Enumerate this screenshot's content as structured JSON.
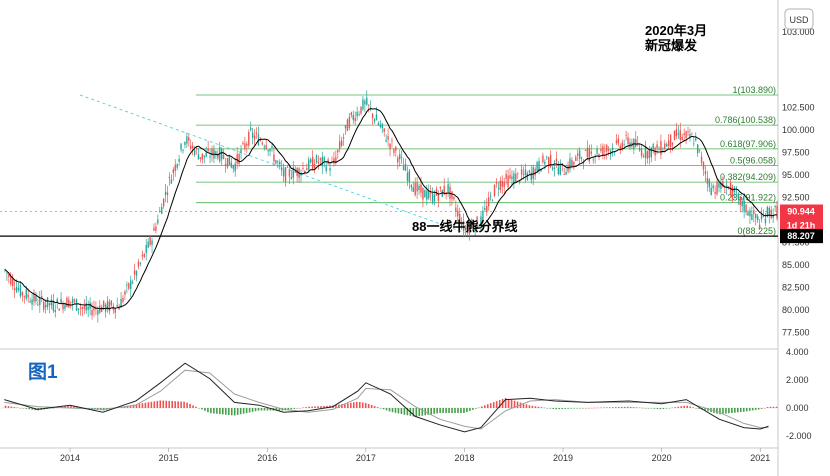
{
  "chart_data": [
    {
      "type": "candlestick",
      "title": "",
      "currency": "USD",
      "x_ticks": [
        "2014",
        "2015",
        "2016",
        "2017",
        "2018",
        "2019",
        "2020",
        "2021"
      ],
      "y_ticks": [
        "103.000",
        "102.500",
        "100.000",
        "97.500",
        "95.000",
        "92.500",
        "90.000",
        "87.500",
        "85.000",
        "82.500",
        "80.000",
        "77.500"
      ],
      "ylim": [
        76.5,
        104.5
      ],
      "series": [
        {
          "kind": "price-path",
          "points": [
            [
              "2013-05",
              84.5
            ],
            [
              "2013-07",
              82.0
            ],
            [
              "2013-09",
              81.0
            ],
            [
              "2013-11",
              80.5
            ],
            [
              "2014-01",
              81.0
            ],
            [
              "2014-03",
              80.0
            ],
            [
              "2014-05",
              80.3
            ],
            [
              "2014-07",
              80.5
            ],
            [
              "2014-09",
              84.0
            ],
            [
              "2014-11",
              88.0
            ],
            [
              "2015-01",
              94.0
            ],
            [
              "2015-03",
              99.0
            ],
            [
              "2015-05",
              97.0
            ],
            [
              "2015-07",
              97.5
            ],
            [
              "2015-09",
              96.0
            ],
            [
              "2015-11",
              99.5
            ],
            [
              "2016-01",
              98.5
            ],
            [
              "2016-03",
              95.0
            ],
            [
              "2016-05",
              95.5
            ],
            [
              "2016-07",
              96.5
            ],
            [
              "2016-09",
              96.0
            ],
            [
              "2016-11",
              101.0
            ],
            [
              "2017-01",
              103.0
            ],
            [
              "2017-03",
              100.0
            ],
            [
              "2017-05",
              97.0
            ],
            [
              "2017-07",
              93.5
            ],
            [
              "2017-09",
              92.5
            ],
            [
              "2017-11",
              93.5
            ],
            [
              "2018-01",
              89.0
            ],
            [
              "2018-03",
              89.8
            ],
            [
              "2018-05",
              94.0
            ],
            [
              "2018-07",
              94.7
            ],
            [
              "2018-09",
              95.0
            ],
            [
              "2018-11",
              96.8
            ],
            [
              "2019-01",
              95.5
            ],
            [
              "2019-03",
              97.0
            ],
            [
              "2019-05",
              97.5
            ],
            [
              "2019-07",
              98.0
            ],
            [
              "2019-09",
              98.8
            ],
            [
              "2019-11",
              97.5
            ],
            [
              "2020-01",
              98.0
            ],
            [
              "2020-03",
              99.5
            ],
            [
              "2020-05",
              99.0
            ],
            [
              "2020-07",
              93.5
            ],
            [
              "2020-09",
              93.8
            ],
            [
              "2020-11",
              91.5
            ],
            [
              "2021-01",
              89.7
            ],
            [
              "2021-02",
              90.9
            ]
          ]
        }
      ],
      "fibonacci": [
        {
          "ratio": "1",
          "value": 103.89
        },
        {
          "ratio": "0.786",
          "value": 100.538
        },
        {
          "ratio": "0.618",
          "value": 97.906
        },
        {
          "ratio": "0.5",
          "value": 96.058
        },
        {
          "ratio": "0.382",
          "value": 94.209
        },
        {
          "ratio": "0.236",
          "value": 91.922
        },
        {
          "ratio": "0",
          "value": 88.225
        }
      ],
      "fib_labels": [
        "1(103.890)",
        "0.786(100.538)",
        "0.618(97.906)",
        "0.5(96.058)",
        "0.382(94.209)",
        "0.236(91.922)",
        "0(88.225)"
      ],
      "support_line": {
        "value": 88.207,
        "label": "88.207",
        "caption": "88一线牛熊分界线"
      },
      "current_price": {
        "value": 90.944,
        "label": "90.944",
        "countdown": "1d 21h"
      },
      "annotation": {
        "line1": "2020年3月",
        "line2": "新冠爆发"
      },
      "colors": {
        "up": "#26a69a",
        "down": "#ef5350",
        "ma": "#000000",
        "fib": "#4caf50",
        "trend": "#4dd0e1",
        "current": "#f23645"
      }
    },
    {
      "type": "macd",
      "label": "图1",
      "y_ticks": [
        "4.000",
        "2.000",
        "0.000",
        "-2.000"
      ],
      "ylim": [
        -2.6,
        4.0
      ],
      "macd_line": [
        [
          "2013-05",
          0.6
        ],
        [
          "2013-09",
          -0.1
        ],
        [
          "2014-01",
          0.2
        ],
        [
          "2014-05",
          -0.3
        ],
        [
          "2014-09",
          0.5
        ],
        [
          "2014-12",
          1.8
        ],
        [
          "2015-03",
          3.2
        ],
        [
          "2015-06",
          2.1
        ],
        [
          "2015-09",
          0.4
        ],
        [
          "2015-12",
          0.2
        ],
        [
          "2016-03",
          -0.3
        ],
        [
          "2016-06",
          -0.2
        ],
        [
          "2016-09",
          0.1
        ],
        [
          "2016-12",
          1.2
        ],
        [
          "2017-01",
          1.8
        ],
        [
          "2017-04",
          1.0
        ],
        [
          "2017-07",
          -0.6
        ],
        [
          "2017-10",
          -1.2
        ],
        [
          "2018-01",
          -1.7
        ],
        [
          "2018-03",
          -1.4
        ],
        [
          "2018-06",
          0.6
        ],
        [
          "2018-09",
          0.7
        ],
        [
          "2018-12",
          0.5
        ],
        [
          "2019-04",
          0.4
        ],
        [
          "2019-09",
          0.5
        ],
        [
          "2020-01",
          0.3
        ],
        [
          "2020-04",
          0.6
        ],
        [
          "2020-08",
          -0.8
        ],
        [
          "2020-11",
          -1.4
        ],
        [
          "2021-01",
          -1.5
        ],
        [
          "2021-02",
          -1.3
        ]
      ],
      "signal_line": [
        [
          "2013-05",
          0.4
        ],
        [
          "2013-09",
          0.1
        ],
        [
          "2014-01",
          0.0
        ],
        [
          "2014-05",
          -0.1
        ],
        [
          "2014-09",
          0.2
        ],
        [
          "2014-12",
          1.2
        ],
        [
          "2015-03",
          2.7
        ],
        [
          "2015-06",
          2.5
        ],
        [
          "2015-09",
          1.0
        ],
        [
          "2015-12",
          0.4
        ],
        [
          "2016-03",
          -0.1
        ],
        [
          "2016-06",
          -0.3
        ],
        [
          "2016-09",
          -0.1
        ],
        [
          "2016-12",
          0.7
        ],
        [
          "2017-01",
          1.4
        ],
        [
          "2017-04",
          1.3
        ],
        [
          "2017-07",
          0.1
        ],
        [
          "2017-10",
          -0.8
        ],
        [
          "2018-01",
          -1.3
        ],
        [
          "2018-03",
          -1.5
        ],
        [
          "2018-06",
          -0.2
        ],
        [
          "2018-09",
          0.5
        ],
        [
          "2018-12",
          0.6
        ],
        [
          "2019-04",
          0.4
        ],
        [
          "2019-09",
          0.4
        ],
        [
          "2020-01",
          0.4
        ],
        [
          "2020-04",
          0.4
        ],
        [
          "2020-08",
          -0.3
        ],
        [
          "2020-11",
          -1.1
        ],
        [
          "2021-01",
          -1.4
        ],
        [
          "2021-02",
          -1.4
        ]
      ]
    }
  ]
}
